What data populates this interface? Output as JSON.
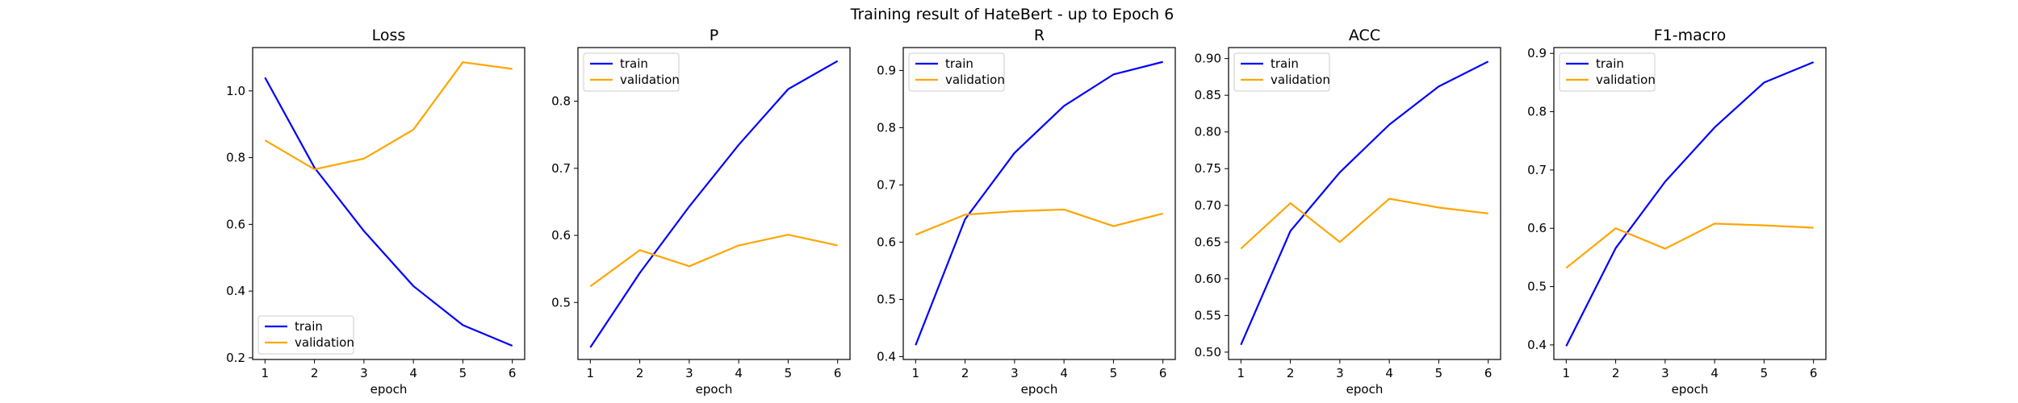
{
  "figure": {
    "title": "Training result of HateBert - up to Epoch 6"
  },
  "colors": {
    "train": "#0000ff",
    "validation": "#ffa500"
  },
  "chart_data": [
    {
      "type": "line",
      "title": "Loss",
      "xlabel": "epoch",
      "ylabel": "",
      "x": [
        1,
        2,
        3,
        4,
        5,
        6
      ],
      "xlim": [
        0.75,
        6.25
      ],
      "ylim": [
        0.195,
        1.13
      ],
      "yticks": [
        0.2,
        0.4,
        0.6,
        0.8,
        1.0
      ],
      "ytick_labels": [
        "0.2",
        "0.4",
        "0.6",
        "0.8",
        "1.0"
      ],
      "legend_position": "lower-left",
      "series": [
        {
          "name": "train",
          "values": [
            1.04,
            0.77,
            0.58,
            0.415,
            0.298,
            0.236
          ]
        },
        {
          "name": "validation",
          "values": [
            0.852,
            0.765,
            0.797,
            0.884,
            1.086,
            1.066
          ]
        }
      ]
    },
    {
      "type": "line",
      "title": "P",
      "xlabel": "epoch",
      "ylabel": "",
      "x": [
        1,
        2,
        3,
        4,
        5,
        6
      ],
      "xlim": [
        0.75,
        6.25
      ],
      "ylim": [
        0.415,
        0.88
      ],
      "yticks": [
        0.5,
        0.6,
        0.7,
        0.8
      ],
      "ytick_labels": [
        "0.5",
        "0.6",
        "0.7",
        "0.8"
      ],
      "legend_position": "upper-left",
      "series": [
        {
          "name": "train",
          "values": [
            0.433,
            0.544,
            0.643,
            0.735,
            0.818,
            0.86
          ]
        },
        {
          "name": "validation",
          "values": [
            0.524,
            0.578,
            0.554,
            0.585,
            0.601,
            0.585
          ]
        }
      ]
    },
    {
      "type": "line",
      "title": "R",
      "xlabel": "epoch",
      "ylabel": "",
      "x": [
        1,
        2,
        3,
        4,
        5,
        6
      ],
      "xlim": [
        0.75,
        6.25
      ],
      "ylim": [
        0.395,
        0.94
      ],
      "yticks": [
        0.4,
        0.5,
        0.6,
        0.7,
        0.8,
        0.9
      ],
      "ytick_labels": [
        "0.4",
        "0.5",
        "0.6",
        "0.7",
        "0.8",
        "0.9"
      ],
      "legend_position": "upper-left",
      "series": [
        {
          "name": "train",
          "values": [
            0.42,
            0.64,
            0.756,
            0.838,
            0.893,
            0.915
          ]
        },
        {
          "name": "validation",
          "values": [
            0.613,
            0.648,
            0.654,
            0.657,
            0.628,
            0.65
          ]
        }
      ]
    },
    {
      "type": "line",
      "title": "ACC",
      "xlabel": "epoch",
      "ylabel": "",
      "x": [
        1,
        2,
        3,
        4,
        5,
        6
      ],
      "xlim": [
        0.75,
        6.25
      ],
      "ylim": [
        0.49,
        0.915
      ],
      "yticks": [
        0.5,
        0.55,
        0.6,
        0.65,
        0.7,
        0.75,
        0.8,
        0.85,
        0.9
      ],
      "ytick_labels": [
        "0.50",
        "0.55",
        "0.60",
        "0.65",
        "0.70",
        "0.75",
        "0.80",
        "0.85",
        "0.90"
      ],
      "legend_position": "upper-left",
      "series": [
        {
          "name": "train",
          "values": [
            0.51,
            0.665,
            0.745,
            0.81,
            0.862,
            0.896
          ]
        },
        {
          "name": "validation",
          "values": [
            0.641,
            0.703,
            0.65,
            0.709,
            0.697,
            0.689
          ]
        }
      ]
    },
    {
      "type": "line",
      "title": "F1-macro",
      "xlabel": "epoch",
      "ylabel": "",
      "x": [
        1,
        2,
        3,
        4,
        5,
        6
      ],
      "xlim": [
        0.75,
        6.25
      ],
      "ylim": [
        0.375,
        0.91
      ],
      "yticks": [
        0.4,
        0.5,
        0.6,
        0.7,
        0.8,
        0.9
      ],
      "ytick_labels": [
        "0.4",
        "0.5",
        "0.6",
        "0.7",
        "0.8",
        "0.9"
      ],
      "legend_position": "upper-left",
      "series": [
        {
          "name": "train",
          "values": [
            0.398,
            0.566,
            0.68,
            0.773,
            0.85,
            0.885
          ]
        },
        {
          "name": "validation",
          "values": [
            0.532,
            0.6,
            0.565,
            0.608,
            0.605,
            0.601
          ]
        }
      ]
    }
  ]
}
